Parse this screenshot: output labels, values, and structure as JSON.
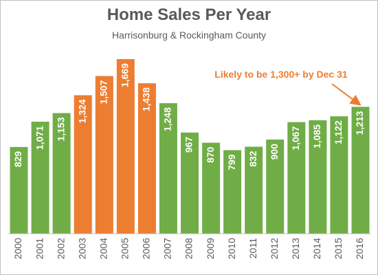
{
  "chart_data": {
    "type": "bar",
    "title": "Home Sales Per Year",
    "subtitle": "Harrisonburg & Rockingham County",
    "categories": [
      "2000",
      "2001",
      "2002",
      "2003",
      "2004",
      "2005",
      "2006",
      "2007",
      "2008",
      "2009",
      "2010",
      "2011",
      "2012",
      "2013",
      "2014",
      "2015",
      "2016"
    ],
    "values": [
      829,
      1071,
      1153,
      1324,
      1507,
      1669,
      1438,
      1248,
      967,
      870,
      799,
      832,
      900,
      1067,
      1085,
      1122,
      1213
    ],
    "value_labels": [
      "829",
      "1,071",
      "1,153",
      "1,324",
      "1,507",
      "1,669",
      "1,438",
      "1,248",
      "967",
      "870",
      "799",
      "832",
      "900",
      "1,067",
      "1,085",
      "1,122",
      "1,213"
    ],
    "highlighted_categories": [
      "2003",
      "2004",
      "2005",
      "2006"
    ],
    "colors": {
      "default": "#70ad47",
      "highlight": "#ed7d31",
      "label": "#ffffff",
      "axis": "#bfbfbf"
    },
    "ylim": [
      0,
      1800
    ],
    "grid": false,
    "annotation": {
      "text": "Likely to be 1,300+ by Dec 31",
      "target": "2016",
      "color": "#ed7d31"
    }
  }
}
